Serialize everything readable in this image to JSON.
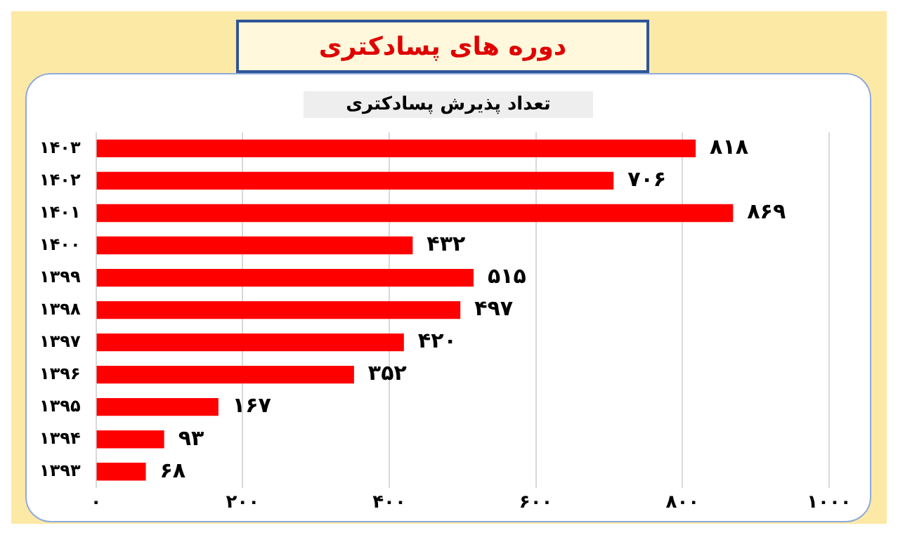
{
  "chart_data": {
    "type": "bar",
    "orientation": "horizontal",
    "title": "دوره های پسادکتری",
    "subtitle": "تعداد پذیرش پسادکتری",
    "categories": [
      "۱۴۰۳",
      "۱۴۰۲",
      "۱۴۰۱",
      "۱۴۰۰",
      "۱۳۹۹",
      "۱۳۹۸",
      "۱۳۹۷",
      "۱۳۹۶",
      "۱۳۹۵",
      "۱۳۹۴",
      "۱۳۹۳"
    ],
    "values": [
      818,
      706,
      869,
      432,
      515,
      497,
      420,
      352,
      167,
      93,
      68
    ],
    "value_labels": [
      "۸۱۸",
      "۷۰۶",
      "۸۶۹",
      "۴۳۲",
      "۵۱۵",
      "۴۹۷",
      "۴۲۰",
      "۳۵۲",
      "۱۶۷",
      "۹۳",
      "۶۸"
    ],
    "color": "#ff0000",
    "xlim": [
      0,
      1000
    ],
    "xticks": [
      {
        "value": 0,
        "label": "۰"
      },
      {
        "value": 200,
        "label": "۲۰۰"
      },
      {
        "value": 400,
        "label": "۴۰۰"
      },
      {
        "value": 600,
        "label": "۶۰۰"
      },
      {
        "value": 800,
        "label": "۸۰۰"
      },
      {
        "value": 1000,
        "label": "۱۰۰۰"
      }
    ],
    "grid": "x",
    "legend": false
  }
}
